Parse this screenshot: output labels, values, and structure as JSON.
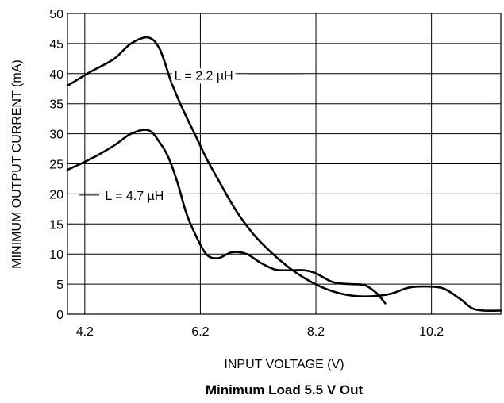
{
  "chart_data": {
    "type": "line",
    "title": "Minimum Load 5.5 V Out",
    "xlabel": "INPUT VOLTAGE (V)",
    "ylabel": "MINIMUM OUTPUT CURRENT (mA)",
    "xlim": [
      3.9,
      11.4
    ],
    "ylim": [
      0,
      50
    ],
    "xticks": [
      4.2,
      6.2,
      8.2,
      10.2
    ],
    "xtick_labels": [
      "4.2",
      "6.2",
      "8.2",
      "10.2"
    ],
    "yticks": [
      0,
      5,
      10,
      15,
      20,
      25,
      30,
      35,
      40,
      45,
      50
    ],
    "ytick_labels": [
      "0",
      "5",
      "10",
      "15",
      "20",
      "25",
      "30",
      "35",
      "40",
      "45",
      "50"
    ],
    "grid": true,
    "series": [
      {
        "name": "L = 2.2 µH",
        "points": [
          [
            3.9,
            38.0
          ],
          [
            4.3,
            40.3
          ],
          [
            4.7,
            42.4
          ],
          [
            5.0,
            45.0
          ],
          [
            5.3,
            46.0
          ],
          [
            5.5,
            44.0
          ],
          [
            5.7,
            38.5
          ],
          [
            5.9,
            34.0
          ],
          [
            6.1,
            30.0
          ],
          [
            6.3,
            26.0
          ],
          [
            6.5,
            22.5
          ],
          [
            6.8,
            17.5
          ],
          [
            7.1,
            13.5
          ],
          [
            7.4,
            10.5
          ],
          [
            7.7,
            8.0
          ],
          [
            8.0,
            6.0
          ],
          [
            8.3,
            4.5
          ],
          [
            8.6,
            3.5
          ],
          [
            8.9,
            3.0
          ],
          [
            9.2,
            3.0
          ],
          [
            9.5,
            3.4
          ],
          [
            9.8,
            4.4
          ],
          [
            10.1,
            4.6
          ],
          [
            10.4,
            4.3
          ],
          [
            10.7,
            2.5
          ],
          [
            10.9,
            1.0
          ],
          [
            11.1,
            0.6
          ],
          [
            11.4,
            0.6
          ]
        ]
      },
      {
        "name": "L = 4.7 µH",
        "points": [
          [
            3.9,
            24.0
          ],
          [
            4.3,
            25.8
          ],
          [
            4.7,
            28.0
          ],
          [
            5.0,
            30.0
          ],
          [
            5.3,
            30.6
          ],
          [
            5.5,
            28.5
          ],
          [
            5.65,
            26.0
          ],
          [
            5.8,
            22.0
          ],
          [
            5.95,
            17.0
          ],
          [
            6.1,
            13.5
          ],
          [
            6.3,
            10.0
          ],
          [
            6.5,
            9.3
          ],
          [
            6.75,
            10.3
          ],
          [
            7.0,
            10.0
          ],
          [
            7.25,
            8.5
          ],
          [
            7.5,
            7.4
          ],
          [
            7.75,
            7.3
          ],
          [
            8.0,
            7.3
          ],
          [
            8.2,
            6.8
          ],
          [
            8.5,
            5.3
          ],
          [
            8.8,
            5.0
          ],
          [
            9.05,
            4.8
          ],
          [
            9.25,
            3.5
          ],
          [
            9.4,
            1.8
          ]
        ]
      }
    ]
  }
}
